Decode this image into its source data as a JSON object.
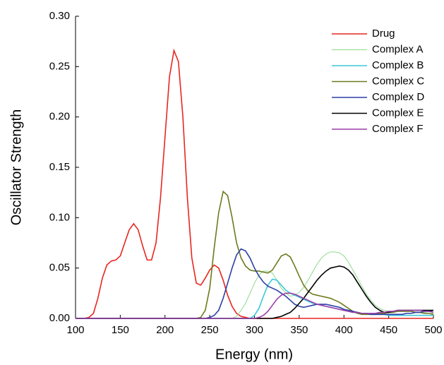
{
  "chart_data": {
    "type": "line",
    "xlabel": "Energy (nm)",
    "ylabel": "Oscillator Strength",
    "xlim": [
      100,
      500
    ],
    "ylim": [
      0,
      0.3
    ],
    "xticks": [
      100,
      150,
      200,
      250,
      300,
      350,
      400,
      450,
      500
    ],
    "yticks": [
      {
        "value": 0,
        "label": "0.00"
      },
      {
        "value": 0.05,
        "label": "0.05"
      },
      {
        "value": 0.1,
        "label": "0.10"
      },
      {
        "value": 0.15,
        "label": "0.15"
      },
      {
        "value": 0.2,
        "label": "0.20"
      },
      {
        "value": 0.25,
        "label": "0.25"
      },
      {
        "value": 0.3,
        "label": "0.30"
      }
    ],
    "legend": "top-right",
    "x": [
      100,
      105,
      110,
      115,
      120,
      125,
      130,
      135,
      140,
      145,
      150,
      155,
      160,
      165,
      170,
      175,
      180,
      185,
      190,
      195,
      200,
      205,
      210,
      215,
      220,
      225,
      230,
      235,
      240,
      245,
      250,
      255,
      260,
      265,
      270,
      275,
      280,
      285,
      290,
      295,
      300,
      305,
      310,
      315,
      320,
      325,
      330,
      335,
      340,
      345,
      350,
      355,
      360,
      365,
      370,
      375,
      380,
      385,
      390,
      395,
      400,
      405,
      410,
      415,
      420,
      425,
      430,
      435,
      440,
      445,
      450,
      455,
      460,
      465,
      470,
      475,
      480,
      485,
      490,
      495,
      500
    ],
    "series": [
      {
        "name": "Drug",
        "color": "#e8261f",
        "values": [
          0,
          0,
          0,
          0.001,
          0.005,
          0.02,
          0.04,
          0.053,
          0.057,
          0.058,
          0.062,
          0.075,
          0.088,
          0.094,
          0.088,
          0.072,
          0.058,
          0.058,
          0.075,
          0.12,
          0.18,
          0.24,
          0.266,
          0.255,
          0.2,
          0.12,
          0.06,
          0.035,
          0.033,
          0.04,
          0.048,
          0.053,
          0.05,
          0.038,
          0.023,
          0.012,
          0.005,
          0.002,
          0.001,
          0,
          0,
          0,
          0,
          0,
          0,
          0,
          0,
          0,
          0,
          0,
          0,
          0,
          0,
          0,
          0,
          0,
          0,
          0,
          0,
          0,
          0,
          0,
          0,
          0,
          0,
          0,
          0,
          0,
          0,
          0,
          0,
          0,
          0,
          0,
          0,
          0,
          0,
          0,
          0,
          0,
          0
        ]
      },
      {
        "name": "Complex A",
        "color": "#8fd98a",
        "values": [
          0,
          0,
          0,
          0,
          0,
          0,
          0,
          0,
          0,
          0,
          0,
          0,
          0,
          0,
          0,
          0,
          0,
          0,
          0,
          0,
          0,
          0,
          0,
          0,
          0,
          0,
          0,
          0,
          0,
          0,
          0,
          0,
          0,
          0,
          0,
          0,
          0.002,
          0.008,
          0.015,
          0.025,
          0.035,
          0.043,
          0.047,
          0.047,
          0.045,
          0.038,
          0.03,
          0.025,
          0.022,
          0.023,
          0.026,
          0.031,
          0.038,
          0.046,
          0.054,
          0.06,
          0.064,
          0.066,
          0.066,
          0.065,
          0.062,
          0.056,
          0.048,
          0.04,
          0.032,
          0.024,
          0.018,
          0.013,
          0.01,
          0.008,
          0.007,
          0.007,
          0.007,
          0.007,
          0.007,
          0.007,
          0.006,
          0.006,
          0.006,
          0.005,
          0.005
        ]
      },
      {
        "name": "Complex B",
        "color": "#3cc8d8",
        "values": [
          0,
          0,
          0,
          0,
          0,
          0,
          0,
          0,
          0,
          0,
          0,
          0,
          0,
          0,
          0,
          0,
          0,
          0,
          0,
          0,
          0,
          0,
          0,
          0,
          0,
          0,
          0,
          0,
          0,
          0,
          0,
          0,
          0,
          0,
          0,
          0,
          0,
          0,
          0,
          0,
          0.003,
          0.01,
          0.022,
          0.033,
          0.039,
          0.038,
          0.033,
          0.028,
          0.025,
          0.023,
          0.021,
          0.019,
          0.017,
          0.015,
          0.014,
          0.013,
          0.012,
          0.011,
          0.01,
          0.009,
          0.008,
          0.007,
          0.006,
          0.006,
          0.005,
          0.005,
          0.004,
          0.004,
          0.004,
          0.004,
          0.003,
          0.003,
          0.003,
          0.003,
          0.003,
          0.003,
          0.003,
          0.003,
          0.003,
          0.003,
          0.003
        ]
      },
      {
        "name": "Complex C",
        "color": "#6e7a1e",
        "values": [
          0,
          0,
          0,
          0,
          0,
          0,
          0,
          0,
          0,
          0,
          0,
          0,
          0,
          0,
          0,
          0,
          0,
          0,
          0,
          0,
          0,
          0,
          0,
          0,
          0,
          0,
          0,
          0,
          0.001,
          0.008,
          0.03,
          0.07,
          0.105,
          0.126,
          0.122,
          0.1,
          0.075,
          0.06,
          0.052,
          0.048,
          0.047,
          0.047,
          0.046,
          0.045,
          0.048,
          0.055,
          0.062,
          0.064,
          0.061,
          0.052,
          0.042,
          0.033,
          0.027,
          0.024,
          0.023,
          0.022,
          0.021,
          0.02,
          0.018,
          0.016,
          0.013,
          0.01,
          0.007,
          0.005,
          0.004,
          0.004,
          0.004,
          0.004,
          0.005,
          0.005,
          0.006,
          0.006,
          0.007,
          0.007,
          0.007,
          0.007,
          0.006,
          0.006,
          0.005,
          0.005,
          0.004
        ]
      },
      {
        "name": "Complex D",
        "color": "#2d3fa6",
        "values": [
          0,
          0,
          0,
          0,
          0,
          0,
          0,
          0,
          0,
          0,
          0,
          0,
          0,
          0,
          0,
          0,
          0,
          0,
          0,
          0,
          0,
          0,
          0,
          0,
          0,
          0,
          0,
          0,
          0,
          0,
          0.001,
          0.003,
          0.008,
          0.02,
          0.035,
          0.05,
          0.063,
          0.069,
          0.067,
          0.06,
          0.05,
          0.042,
          0.036,
          0.032,
          0.03,
          0.028,
          0.025,
          0.022,
          0.018,
          0.014,
          0.012,
          0.011,
          0.012,
          0.013,
          0.014,
          0.014,
          0.014,
          0.013,
          0.012,
          0.011,
          0.009,
          0.008,
          0.007,
          0.006,
          0.005,
          0.005,
          0.004,
          0.004,
          0.004,
          0.004,
          0.004,
          0.004,
          0.004,
          0.004,
          0.005,
          0.005,
          0.006,
          0.006,
          0.007,
          0.007,
          0.008
        ]
      },
      {
        "name": "Complex E",
        "color": "#000000",
        "values": [
          0,
          0,
          0,
          0,
          0,
          0,
          0,
          0,
          0,
          0,
          0,
          0,
          0,
          0,
          0,
          0,
          0,
          0,
          0,
          0,
          0,
          0,
          0,
          0,
          0,
          0,
          0,
          0,
          0,
          0,
          0,
          0,
          0,
          0,
          0,
          0,
          0,
          0,
          0,
          0,
          0,
          0,
          0,
          0,
          0,
          0.001,
          0.002,
          0.004,
          0.006,
          0.01,
          0.015,
          0.02,
          0.026,
          0.032,
          0.038,
          0.043,
          0.047,
          0.05,
          0.051,
          0.052,
          0.051,
          0.048,
          0.043,
          0.036,
          0.029,
          0.022,
          0.016,
          0.011,
          0.008,
          0.006,
          0.006,
          0.007,
          0.008,
          0.008,
          0.008,
          0.008,
          0.008,
          0.008,
          0.008,
          0.008,
          0.008
        ]
      },
      {
        "name": "Complex F",
        "color": "#9b3fa8",
        "values": [
          0,
          0,
          0,
          0,
          0,
          0,
          0,
          0,
          0,
          0,
          0,
          0,
          0,
          0,
          0,
          0,
          0,
          0,
          0,
          0,
          0,
          0,
          0,
          0,
          0,
          0,
          0,
          0,
          0,
          0,
          0,
          0,
          0,
          0,
          0,
          0,
          0,
          0,
          0,
          0,
          0,
          0.001,
          0.003,
          0.007,
          0.013,
          0.019,
          0.023,
          0.025,
          0.025,
          0.024,
          0.022,
          0.02,
          0.018,
          0.016,
          0.014,
          0.013,
          0.012,
          0.011,
          0.01,
          0.009,
          0.008,
          0.007,
          0.006,
          0.006,
          0.005,
          0.005,
          0.005,
          0.005,
          0.006,
          0.006,
          0.007,
          0.007,
          0.008,
          0.008,
          0.008,
          0.008,
          0.008,
          0.008,
          0.007,
          0.007,
          0.006
        ]
      }
    ]
  }
}
